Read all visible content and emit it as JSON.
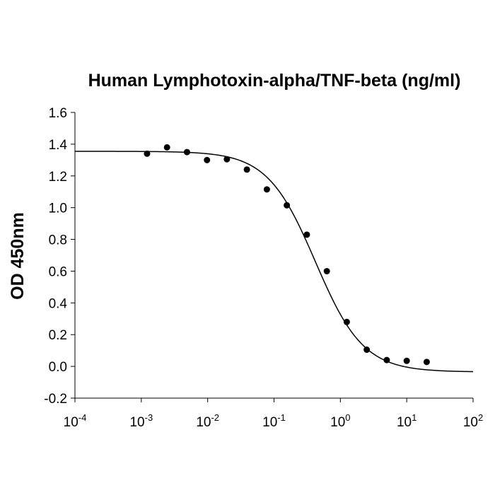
{
  "chart_data": {
    "type": "scatter",
    "title": "Human Lymphotoxin-alpha/TNF-beta (ng/ml)",
    "xlabel": "",
    "ylabel": "OD 450nm",
    "x_scale": "log",
    "xlim": [
      0.0001,
      100
    ],
    "ylim": [
      -0.2,
      1.6
    ],
    "x_ticks": [
      {
        "value": 0.0001,
        "base": "10",
        "exp": "-4"
      },
      {
        "value": 0.001,
        "base": "10",
        "exp": "-3"
      },
      {
        "value": 0.01,
        "base": "10",
        "exp": "-2"
      },
      {
        "value": 0.1,
        "base": "10",
        "exp": "-1"
      },
      {
        "value": 1,
        "base": "10",
        "exp": "0"
      },
      {
        "value": 10,
        "base": "10",
        "exp": "1"
      },
      {
        "value": 100,
        "base": "10",
        "exp": "2"
      }
    ],
    "y_ticks": [
      {
        "value": -0.2,
        "label": "-0.2"
      },
      {
        "value": 0.0,
        "label": "0.0"
      },
      {
        "value": 0.2,
        "label": "0.2"
      },
      {
        "value": 0.4,
        "label": "0.4"
      },
      {
        "value": 0.6,
        "label": "0.6"
      },
      {
        "value": 0.8,
        "label": "0.8"
      },
      {
        "value": 1.0,
        "label": "1.0"
      },
      {
        "value": 1.2,
        "label": "1.2"
      },
      {
        "value": 1.4,
        "label": "1.4"
      },
      {
        "value": 1.6,
        "label": "1.6"
      }
    ],
    "grid": false,
    "legend": "none",
    "points": [
      {
        "x": 0.00122,
        "y": 1.34
      },
      {
        "x": 0.00244,
        "y": 1.38
      },
      {
        "x": 0.00488,
        "y": 1.35
      },
      {
        "x": 0.00977,
        "y": 1.3
      },
      {
        "x": 0.0195,
        "y": 1.305
      },
      {
        "x": 0.039,
        "y": 1.24
      },
      {
        "x": 0.078,
        "y": 1.115
      },
      {
        "x": 0.156,
        "y": 1.015
      },
      {
        "x": 0.3125,
        "y": 0.83
      },
      {
        "x": 0.625,
        "y": 0.6
      },
      {
        "x": 1.25,
        "y": 0.28
      },
      {
        "x": 2.5,
        "y": 0.105
      },
      {
        "x": 5,
        "y": 0.04
      },
      {
        "x": 10,
        "y": 0.035
      },
      {
        "x": 20,
        "y": 0.028
      }
    ],
    "fit": {
      "model": "4PL",
      "top": 1.355,
      "bottom": -0.035,
      "ec50": 0.42,
      "hill": 1.2
    }
  }
}
